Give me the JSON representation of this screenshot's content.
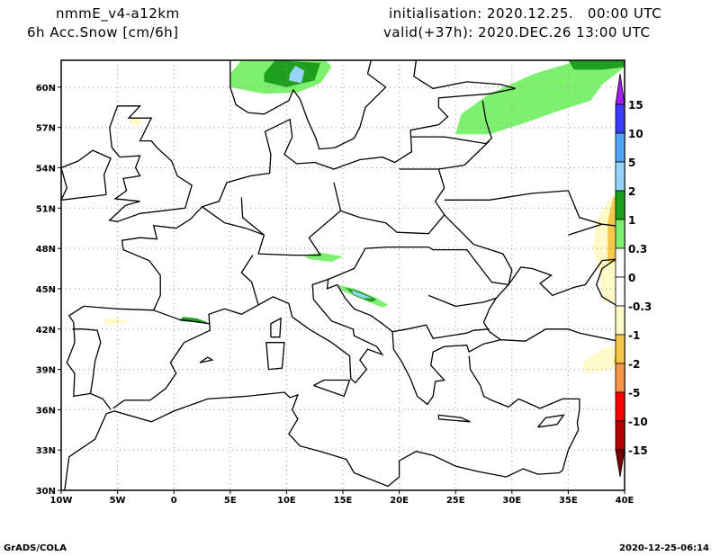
{
  "header": {
    "model": "nmmE_v4-a12km",
    "variable": "6h Acc.Snow [cm/6h]",
    "init": "initialisation: 2020.12.25.   00:00 UTC",
    "valid": "valid(+37h): 2020.DEC.26 13:00 UTC"
  },
  "map": {
    "lon_range": [
      -10,
      40
    ],
    "lat_range": [
      30,
      62
    ],
    "lat_labels": [
      "30N",
      "33N",
      "36N",
      "39N",
      "42N",
      "45N",
      "48N",
      "51N",
      "54N",
      "57N",
      "60N"
    ],
    "lat_values": [
      30,
      33,
      36,
      39,
      42,
      45,
      48,
      51,
      54,
      57,
      60
    ],
    "lon_labels": [
      "10W",
      "5W",
      "0",
      "5E",
      "10E",
      "15E",
      "20E",
      "25E",
      "30E",
      "35E",
      "40E"
    ],
    "lon_values": [
      -10,
      -5,
      0,
      5,
      10,
      15,
      20,
      25,
      30,
      35,
      40
    ]
  },
  "colorbar": {
    "labels": [
      "15",
      "10",
      "5",
      "2",
      "1",
      "0.3",
      "0",
      "-0.3",
      "-1",
      "-2",
      "-5",
      "-10",
      "-15"
    ],
    "colors": [
      "#a01ef0",
      "#3c3cff",
      "#50a5f5",
      "#96d2fa",
      "#1ea01e",
      "#7ef070",
      "#ffffff",
      "#ffffff",
      "#fffac8",
      "#f5c84b",
      "#f59646",
      "#ff0000",
      "#b40000",
      "#780000"
    ]
  },
  "footer": {
    "left": "GrADS/COLA",
    "right": "2020-12-25-06:14"
  }
}
